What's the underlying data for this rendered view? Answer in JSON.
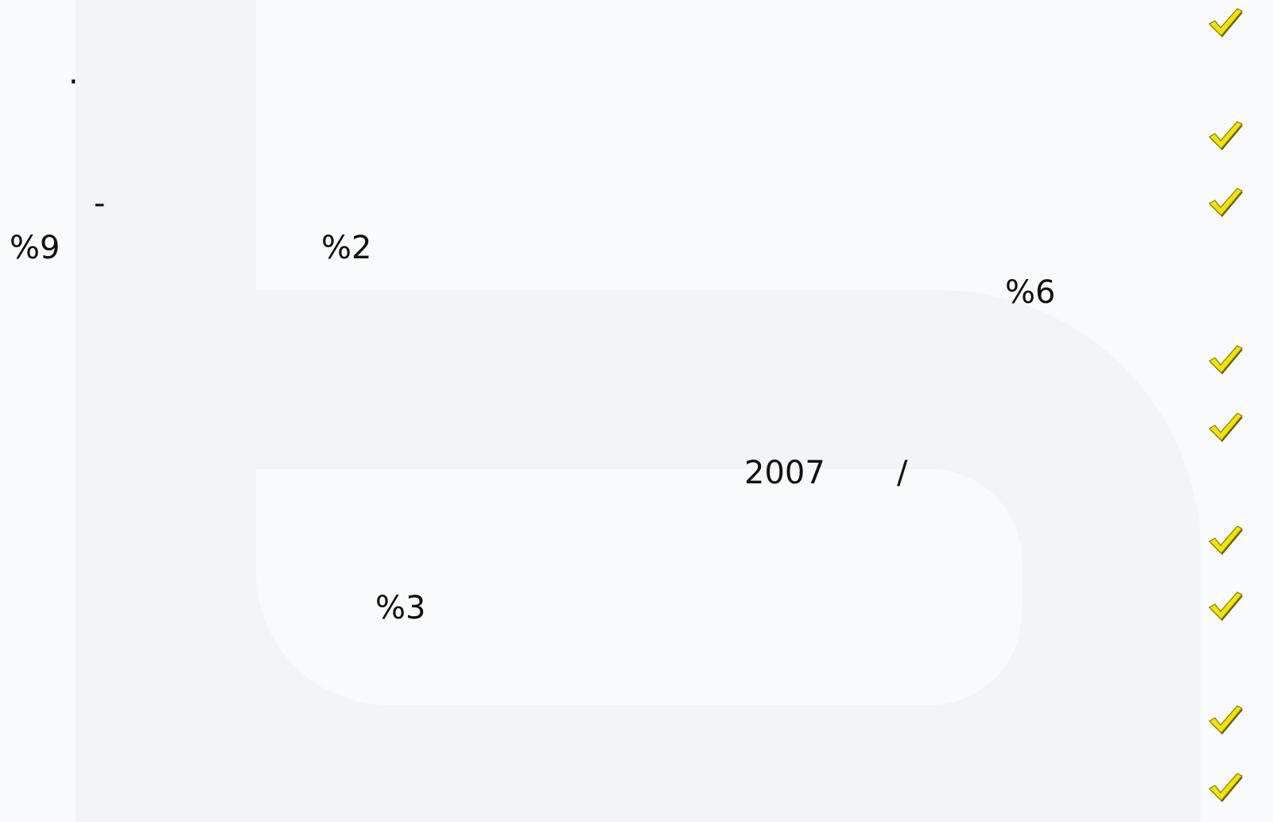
{
  "fragments": [
    ".",
    "-",
    "%9",
    "%2",
    "%6",
    "2007",
    "/",
    "%3"
  ]
}
